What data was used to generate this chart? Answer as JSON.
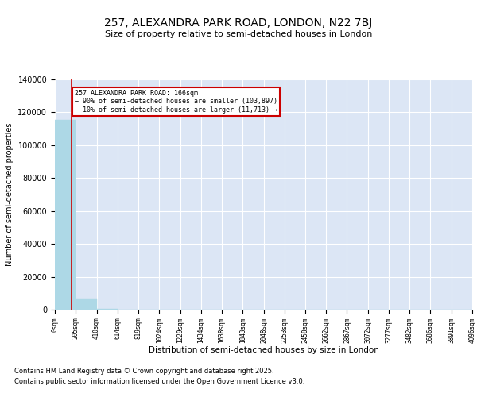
{
  "title": "257, ALEXANDRA PARK ROAD, LONDON, N22 7BJ",
  "subtitle": "Size of property relative to semi-detached houses in London",
  "xlabel": "Distribution of semi-detached houses by size in London",
  "ylabel": "Number of semi-detached properties",
  "property_size": 166,
  "property_label": "257 ALEXANDRA PARK ROAD: 166sqm",
  "pct_smaller": 90,
  "count_smaller": 103897,
  "pct_larger": 10,
  "count_larger": 11713,
  "bin_edges": [
    0,
    205,
    410,
    614,
    819,
    1024,
    1229,
    1434,
    1638,
    1843,
    2048,
    2253,
    2458,
    2662,
    2867,
    3072,
    3277,
    3482,
    3686,
    3891,
    4096
  ],
  "bin_counts": [
    115610,
    7000,
    500,
    200,
    100,
    50,
    30,
    20,
    15,
    10,
    8,
    6,
    5,
    4,
    3,
    3,
    2,
    2,
    1,
    1
  ],
  "bar_color": "#add8e6",
  "bar_edge_color": "#add8e6",
  "vline_color": "#cc0000",
  "annotation_box_edge_color": "#cc0000",
  "background_color": "#dce6f5",
  "grid_color": "#ffffff",
  "ylim": [
    0,
    140000
  ],
  "yticks": [
    0,
    20000,
    40000,
    60000,
    80000,
    100000,
    120000,
    140000
  ],
  "footer_line1": "Contains HM Land Registry data © Crown copyright and database right 2025.",
  "footer_line2": "Contains public sector information licensed under the Open Government Licence v3.0."
}
